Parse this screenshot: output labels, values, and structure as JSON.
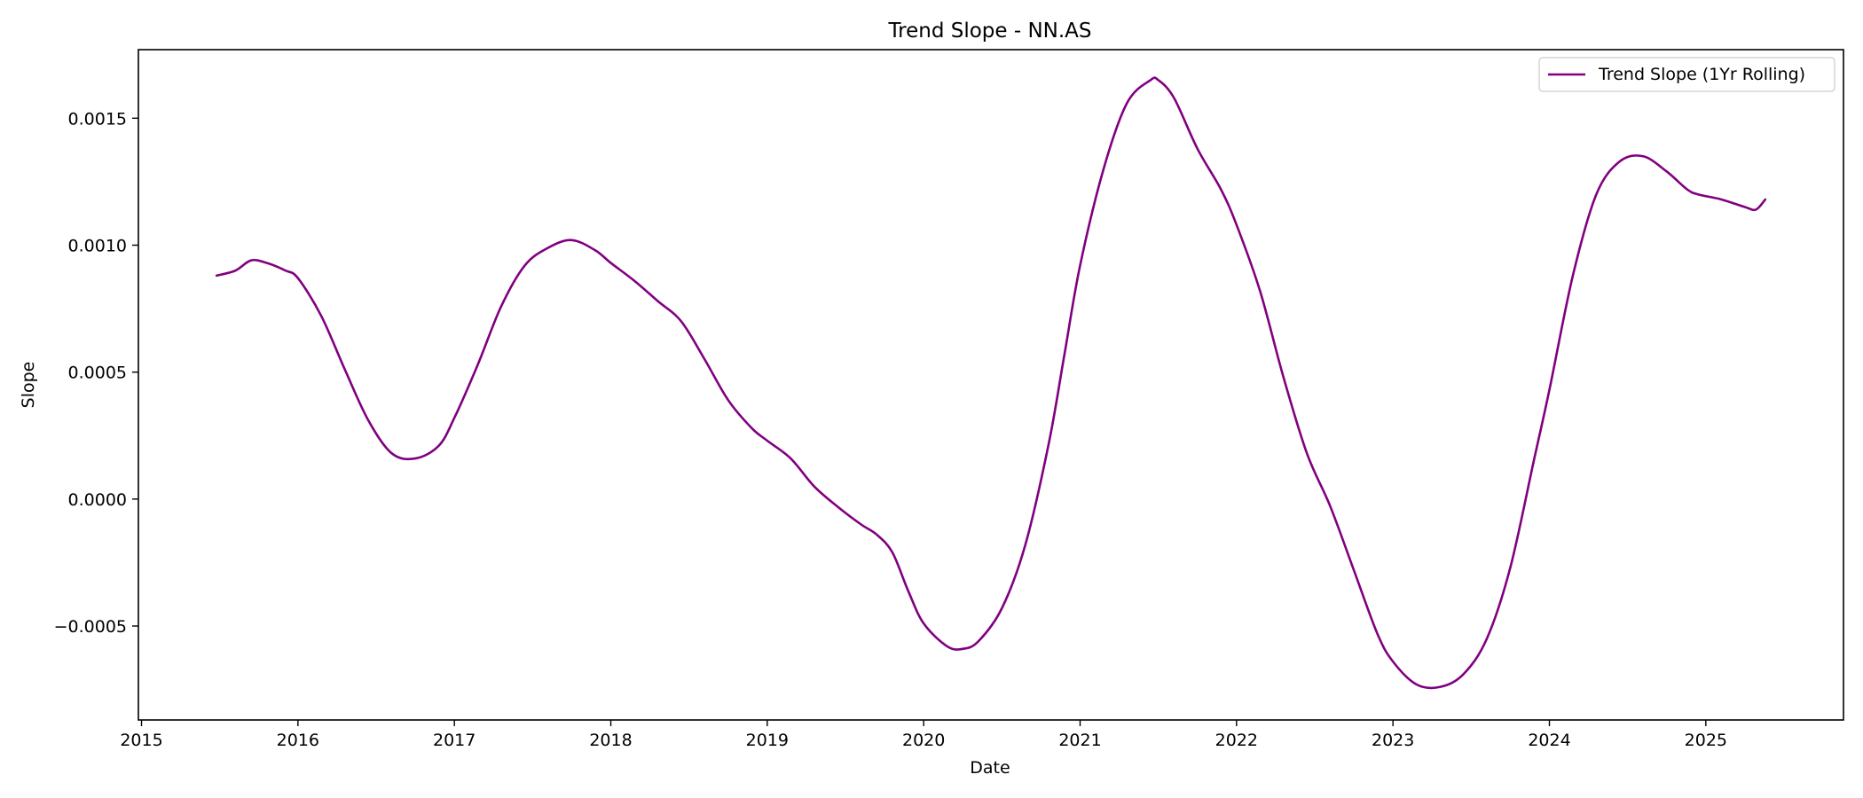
{
  "chart_data": {
    "type": "line",
    "title": "Trend Slope - NN.AS",
    "xlabel": "Date",
    "ylabel": "Slope",
    "xlim": [
      2014.98,
      2025.88
    ],
    "ylim": [
      -0.00087,
      0.00177
    ],
    "x_ticks": [
      2015,
      2016,
      2017,
      2018,
      2019,
      2020,
      2021,
      2022,
      2023,
      2024,
      2025
    ],
    "x_tick_labels": [
      "2015",
      "2016",
      "2017",
      "2018",
      "2019",
      "2020",
      "2021",
      "2022",
      "2023",
      "2024",
      "2025"
    ],
    "y_ticks": [
      -0.0005,
      0.0,
      0.0005,
      0.001,
      0.0015
    ],
    "y_tick_labels": [
      "−0.0005",
      "0.0000",
      "0.0005",
      "0.0010",
      "0.0015"
    ],
    "grid": false,
    "legend": {
      "position": "top-right",
      "entries": [
        "Trend Slope (1Yr Rolling)"
      ]
    },
    "series": [
      {
        "name": "Trend Slope (1Yr Rolling)",
        "color": "#800080",
        "x": [
          2015.48,
          2015.6,
          2015.7,
          2015.8,
          2015.92,
          2016.0,
          2016.15,
          2016.3,
          2016.45,
          2016.6,
          2016.75,
          2016.9,
          2017.0,
          2017.15,
          2017.3,
          2017.45,
          2017.6,
          2017.75,
          2017.9,
          2018.0,
          2018.15,
          2018.3,
          2018.45,
          2018.6,
          2018.75,
          2018.9,
          2019.0,
          2019.15,
          2019.3,
          2019.45,
          2019.6,
          2019.7,
          2019.8,
          2019.9,
          2020.0,
          2020.15,
          2020.25,
          2020.35,
          2020.5,
          2020.65,
          2020.8,
          2020.9,
          2021.0,
          2021.15,
          2021.3,
          2021.45,
          2021.5,
          2021.6,
          2021.75,
          2021.9,
          2022.0,
          2022.15,
          2022.3,
          2022.45,
          2022.6,
          2022.75,
          2022.9,
          2023.0,
          2023.15,
          2023.3,
          2023.45,
          2023.6,
          2023.75,
          2023.9,
          2024.0,
          2024.15,
          2024.3,
          2024.45,
          2024.6,
          2024.75,
          2024.88,
          2024.95,
          2025.1,
          2025.25,
          2025.32,
          2025.38
        ],
        "values": [
          0.00088,
          0.0009,
          0.00094,
          0.00093,
          0.0009,
          0.00087,
          0.00072,
          0.00051,
          0.00031,
          0.00018,
          0.00016,
          0.00021,
          0.00032,
          0.00053,
          0.00076,
          0.00092,
          0.00099,
          0.00102,
          0.00098,
          0.00093,
          0.00086,
          0.00078,
          0.0007,
          0.00055,
          0.00039,
          0.00028,
          0.00023,
          0.00016,
          5e-05,
          -3e-05,
          -0.0001,
          -0.00014,
          -0.00021,
          -0.00036,
          -0.00049,
          -0.00058,
          -0.00059,
          -0.00056,
          -0.00043,
          -0.00018,
          0.00022,
          0.00057,
          0.00092,
          0.0013,
          0.00156,
          0.00165,
          0.00165,
          0.00158,
          0.00138,
          0.00122,
          0.00108,
          0.00082,
          0.00048,
          0.00018,
          -3e-05,
          -0.00028,
          -0.00053,
          -0.00064,
          -0.00073,
          -0.00074,
          -0.00069,
          -0.00055,
          -0.00027,
          0.00015,
          0.00043,
          0.00088,
          0.0012,
          0.00133,
          0.00135,
          0.00129,
          0.00122,
          0.0012,
          0.00118,
          0.00115,
          0.00114,
          0.00118
        ]
      }
    ]
  }
}
